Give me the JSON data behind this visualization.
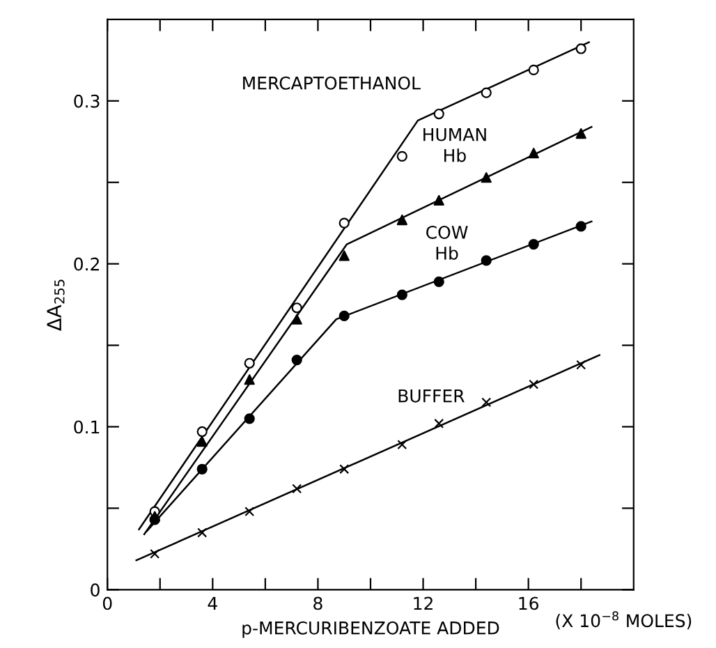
{
  "chart_data": {
    "type": "scatter",
    "xlabel": "p-MERCURIBENZOATE ADDED",
    "ylabel": "ΔA$_{255}$",
    "xlim": [
      0,
      20
    ],
    "ylim": [
      0,
      0.35
    ],
    "xticks": [
      0,
      {
        "value": 2,
        "label": null
      },
      4,
      {
        "value": 6,
        "label": null
      },
      8,
      {
        "value": 10,
        "label": null
      },
      12,
      {
        "value": 14,
        "label": null
      },
      16,
      {
        "value": 18,
        "label": null
      }
    ],
    "yticks": [
      0,
      {
        "value": 0.05,
        "label": null
      },
      0.1,
      {
        "value": 0.15,
        "label": null
      },
      0.2,
      {
        "value": 0.25,
        "label": null
      },
      0.3
    ],
    "grid": false,
    "legend": false,
    "annotations": [
      "(X 10$^{−8}$ MOLES)"
    ],
    "series": [
      {
        "name": "MERCAPTOETHANOL",
        "marker": "circle",
        "color": "#000000",
        "x": [
          1.8,
          3.6,
          5.4,
          7.2,
          9.0,
          11.2,
          12.6,
          14.4,
          16.2,
          18.0
        ],
        "values": [
          0.048,
          0.097,
          0.139,
          0.173,
          0.225,
          0.266,
          0.292,
          0.305,
          0.319,
          0.332
        ]
      },
      {
        "name": "HUMAN\nHb",
        "marker": "triangle",
        "color": "#000000",
        "x": [
          1.8,
          3.6,
          5.4,
          7.2,
          9.0,
          11.2,
          12.6,
          14.4,
          16.2,
          18.0
        ],
        "values": [
          0.045,
          0.091,
          0.129,
          0.166,
          0.205,
          0.227,
          0.239,
          0.253,
          0.268,
          0.28
        ]
      },
      {
        "name": "COW\nHb",
        "marker": "circle",
        "color": "#000000",
        "x": [
          1.8,
          3.6,
          5.4,
          7.2,
          9.0,
          11.2,
          12.6,
          14.4,
          16.2,
          18.0
        ],
        "values": [
          0.043,
          0.074,
          0.105,
          0.141,
          0.168,
          0.181,
          0.189,
          0.202,
          0.212,
          0.223
        ]
      },
      {
        "name": "BUFFER",
        "marker": "cross",
        "color": "#000000",
        "x": [
          1.8,
          3.6,
          5.4,
          7.2,
          9.0,
          11.2,
          12.6,
          14.4,
          16.2,
          18.0
        ],
        "values": [
          0.022,
          0.035,
          0.048,
          0.062,
          0.074,
          0.089,
          0.102,
          0.115,
          0.126,
          0.138
        ]
      },
      {
        "type": "line",
        "marker": "none",
        "line_style": "solid",
        "color": "#000000",
        "x": [
          1.2,
          11.8,
          18.3
        ],
        "values": [
          0.037,
          0.288,
          0.336
        ]
      },
      {
        "type": "line",
        "marker": "none",
        "line_style": "solid",
        "color": "#000000",
        "x": [
          1.4,
          9.1,
          18.4
        ],
        "values": [
          0.034,
          0.212,
          0.284
        ]
      },
      {
        "type": "line",
        "marker": "none",
        "line_style": "solid",
        "color": "#000000",
        "x": [
          1.5,
          8.7,
          18.4
        ],
        "values": [
          0.036,
          0.166,
          0.226
        ]
      },
      {
        "type": "line",
        "marker": "none",
        "line_style": "solid",
        "color": "#000000",
        "x": [
          1.1,
          18.7
        ],
        "values": [
          0.018,
          0.144
        ]
      }
    ]
  }
}
